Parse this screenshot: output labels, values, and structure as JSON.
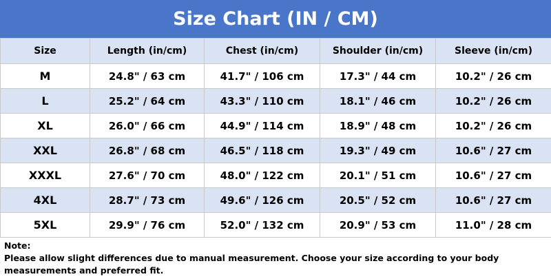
{
  "header": {
    "title": "Size Chart (IN / CM)"
  },
  "table": {
    "columns": [
      "Size",
      "Length (in/cm)",
      "Chest (in/cm)",
      "Shoulder (in/cm)",
      "Sleeve (in/cm)"
    ],
    "rows": [
      [
        "M",
        "24.8\" / 63 cm",
        "41.7\" / 106 cm",
        "17.3\" / 44 cm",
        "10.2\" / 26 cm"
      ],
      [
        "L",
        "25.2\" / 64 cm",
        "43.3\" / 110 cm",
        "18.1\" / 46 cm",
        "10.2\" / 26 cm"
      ],
      [
        "XL",
        "26.0\" / 66 cm",
        "44.9\" / 114 cm",
        "18.9\" / 48 cm",
        "10.2\" / 26 cm"
      ],
      [
        "XXL",
        "26.8\" / 68 cm",
        "46.5\" / 118 cm",
        "19.3\" / 49 cm",
        "10.6\" / 27 cm"
      ],
      [
        "XXXL",
        "27.6\" / 70 cm",
        "48.0\" / 122 cm",
        "20.1\" / 51 cm",
        "10.6\" / 27 cm"
      ],
      [
        "4XL",
        "28.7\" / 73 cm",
        "49.6\" / 126 cm",
        "20.5\" / 52 cm",
        "10.6\" / 27 cm"
      ],
      [
        "5XL",
        "29.9\" / 76 cm",
        "52.0\" / 132 cm",
        "20.9\" / 53 cm",
        "11.0\" / 28 cm"
      ]
    ]
  },
  "note": {
    "label": "Note:",
    "text": "Please allow slight differences due to manual measurement. Choose your size according to your body measurements and preferred fit."
  }
}
